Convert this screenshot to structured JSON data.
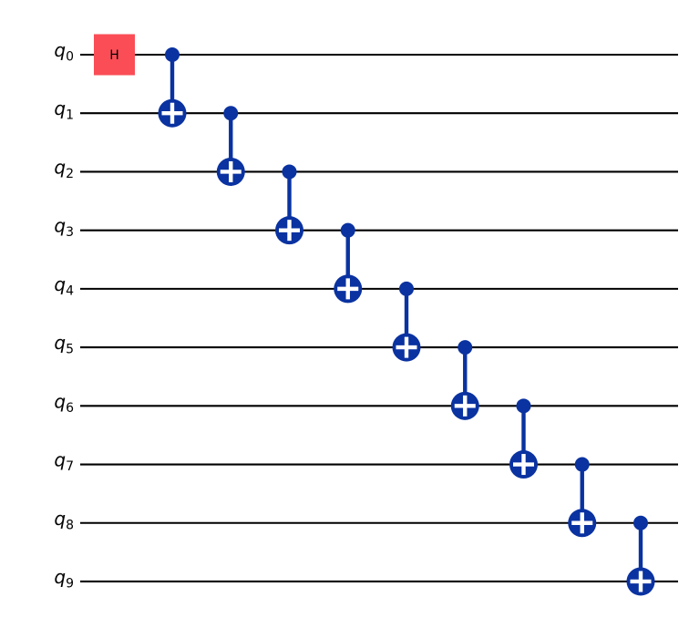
{
  "diagram": {
    "type": "quantum-circuit",
    "description": "GHZ-state preparation circuit: Hadamard on q0 followed by a chain of CNOT gates",
    "background_color": "#ffffff",
    "wire_color": "#000000",
    "label_color": "#000000",
    "cx_color": "#0a32a0",
    "h_gate": {
      "label": "H",
      "fill": "#fa4d56",
      "text_color": "#000000",
      "qubit": 0
    },
    "qubits": [
      {
        "base": "q",
        "subscript": "0"
      },
      {
        "base": "q",
        "subscript": "1"
      },
      {
        "base": "q",
        "subscript": "2"
      },
      {
        "base": "q",
        "subscript": "3"
      },
      {
        "base": "q",
        "subscript": "4"
      },
      {
        "base": "q",
        "subscript": "5"
      },
      {
        "base": "q",
        "subscript": "6"
      },
      {
        "base": "q",
        "subscript": "7"
      },
      {
        "base": "q",
        "subscript": "8"
      },
      {
        "base": "q",
        "subscript": "9"
      }
    ],
    "gates": [
      {
        "type": "h",
        "qubit": 0
      },
      {
        "type": "cx",
        "control": 0,
        "target": 1
      },
      {
        "type": "cx",
        "control": 1,
        "target": 2
      },
      {
        "type": "cx",
        "control": 2,
        "target": 3
      },
      {
        "type": "cx",
        "control": 3,
        "target": 4
      },
      {
        "type": "cx",
        "control": 4,
        "target": 5
      },
      {
        "type": "cx",
        "control": 5,
        "target": 6
      },
      {
        "type": "cx",
        "control": 6,
        "target": 7
      },
      {
        "type": "cx",
        "control": 7,
        "target": 8
      },
      {
        "type": "cx",
        "control": 8,
        "target": 9
      }
    ]
  }
}
